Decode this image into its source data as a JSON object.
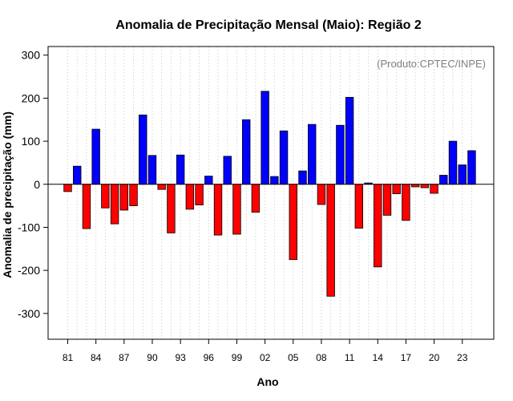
{
  "chart_data": {
    "type": "bar",
    "title": "Anomalia de Precipitação Mensal (Maio): Região 2",
    "xlabel": "Ano",
    "ylabel": "Anomalia de precipitação (mm)",
    "credit": "(Produto:CPTEC/INPE)",
    "ylim": [
      -360,
      320
    ],
    "yticks": [
      -300,
      -200,
      -100,
      0,
      100,
      200,
      300
    ],
    "tick_labels": [
      "81",
      "84",
      "87",
      "90",
      "93",
      "96",
      "99",
      "02",
      "05",
      "08",
      "11",
      "14",
      "17",
      "20",
      "23"
    ],
    "categories": [
      "1981",
      "1982",
      "1983",
      "1984",
      "1985",
      "1986",
      "1987",
      "1988",
      "1989",
      "1990",
      "1991",
      "1992",
      "1993",
      "1994",
      "1995",
      "1996",
      "1997",
      "1998",
      "1999",
      "2000",
      "2001",
      "2002",
      "2003",
      "2004",
      "2005",
      "2006",
      "2007",
      "2008",
      "2009",
      "2010",
      "2011",
      "2012",
      "2013",
      "2014",
      "2015",
      "2016",
      "2017",
      "2018",
      "2019",
      "2020",
      "2021",
      "2022",
      "2023",
      "2024"
    ],
    "values": [
      -17,
      42,
      -103,
      128,
      -55,
      -92,
      -60,
      -50,
      161,
      67,
      -12,
      -113,
      68,
      -58,
      -48,
      19,
      -118,
      65,
      -116,
      150,
      -65,
      216,
      18,
      124,
      -175,
      31,
      139,
      -47,
      -260,
      137,
      202,
      -102,
      3,
      -192,
      -72,
      -22,
      -84,
      -6,
      -8,
      -21,
      21,
      100,
      45,
      78
    ],
    "positive_color": "#0000ff",
    "negative_color": "#ff0000",
    "grid": "vertical dotted"
  }
}
